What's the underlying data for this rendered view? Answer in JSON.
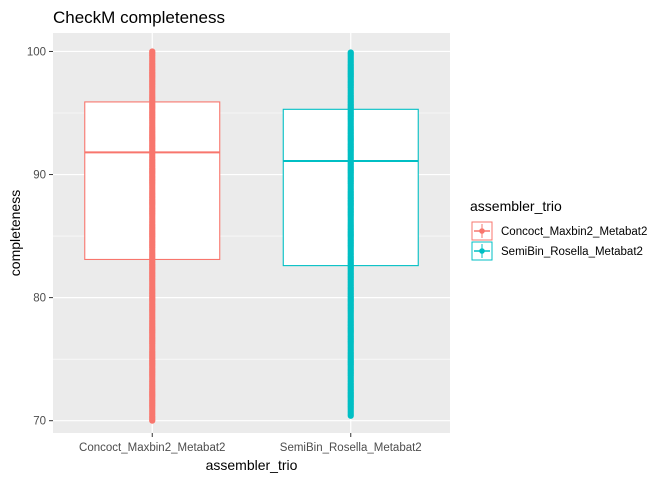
{
  "chart_data": {
    "type": "boxplot",
    "title": "CheckM completeness",
    "xlabel": "assembler_trio",
    "ylabel": "completeness",
    "categories": [
      "Concoct_Maxbin2_Metabat2",
      "SemiBin_Rosella_Metabat2"
    ],
    "ylim": [
      69,
      101.5
    ],
    "yticks": [
      70,
      80,
      90,
      100
    ],
    "grid": true,
    "legend": {
      "title": "assembler_trio",
      "placement": "right",
      "entries": [
        "Concoct_Maxbin2_Metabat2",
        "SemiBin_Rosella_Metabat2"
      ]
    },
    "colors": [
      "#F8766D",
      "#00BFC4"
    ],
    "series": [
      {
        "name": "Concoct_Maxbin2_Metabat2",
        "box": {
          "q1": 83.1,
          "median": 91.8,
          "q3": 95.9
        },
        "points_range": [
          70,
          100
        ]
      },
      {
        "name": "SemiBin_Rosella_Metabat2",
        "box": {
          "q1": 82.6,
          "median": 91.1,
          "q3": 95.3
        },
        "points_range": [
          70.4,
          100
        ]
      }
    ]
  }
}
